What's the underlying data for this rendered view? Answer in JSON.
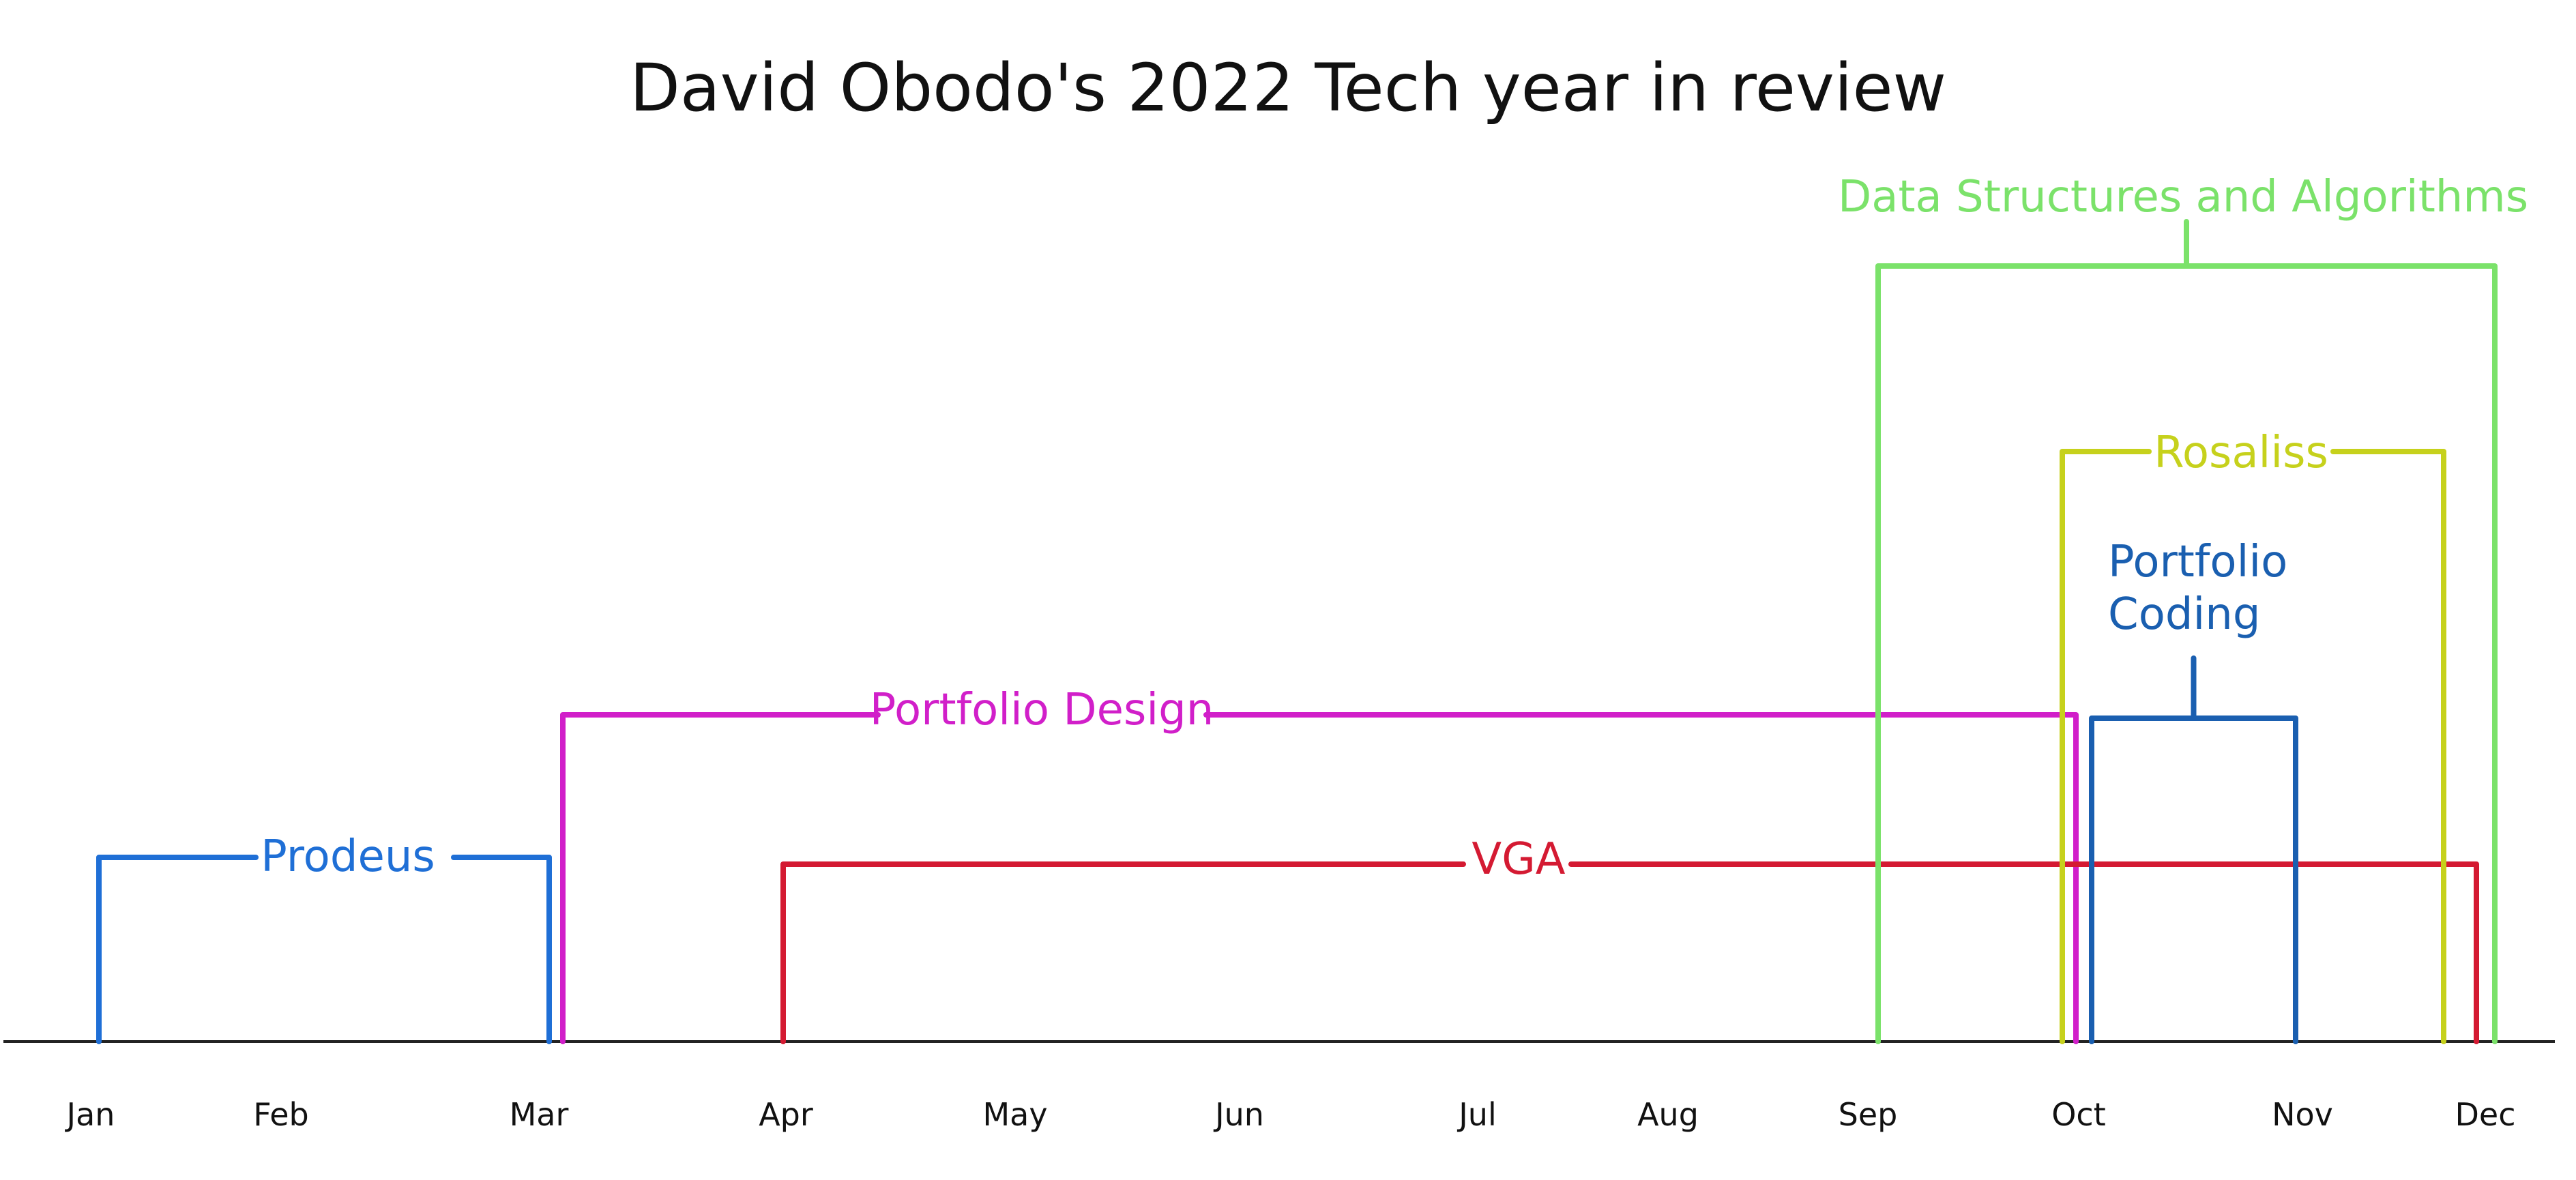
{
  "chart_data": {
    "type": "timeline",
    "title": "David Obodo's 2022 Tech year in review",
    "months": [
      "Jan",
      "Feb",
      "Mar",
      "Apr",
      "May",
      "Jun",
      "Jul",
      "Aug",
      "Sep",
      "Oct",
      "Nov",
      "Dec"
    ],
    "series": [
      {
        "name": "Prodeus",
        "start": "Jan",
        "end": "Mar",
        "color": "#1f6fd6"
      },
      {
        "name": "Portfolio Design",
        "start": "Mar",
        "end": "Oct",
        "color": "#d11fc9"
      },
      {
        "name": "VGA",
        "start": "Apr",
        "end": "Dec",
        "color": "#d41a32"
      },
      {
        "name": "Data Structures and Algorithms",
        "start": "Sep",
        "end": "Dec",
        "color": "#7be26a"
      },
      {
        "name": "Rosaliss",
        "start": "Oct",
        "end": "Dec",
        "color": "#c6d11c"
      },
      {
        "name": "Portfolio Coding",
        "start": "Oct",
        "end": "Nov",
        "color": "#1a5fb0"
      }
    ]
  }
}
